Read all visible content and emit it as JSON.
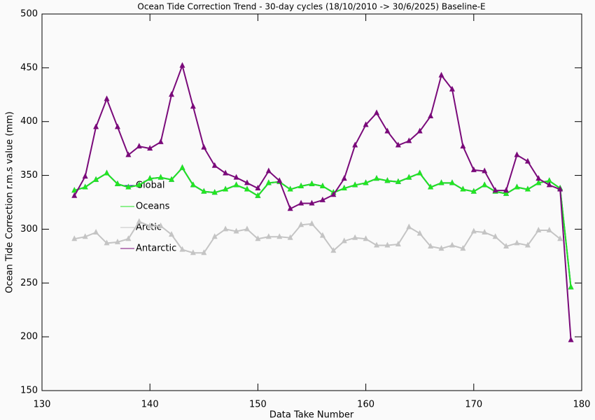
{
  "chart_data": {
    "type": "line",
    "title": "Ocean Tide Correction Trend - 30-day cycles (18/10/2010 -> 30/6/2025) Baseline-E",
    "x_label": "Data Take Number",
    "y_label": "Ocean Tide Correction r.m.s value (mm)",
    "x": [
      133,
      134,
      135,
      136,
      137,
      138,
      139,
      140,
      141,
      142,
      143,
      144,
      145,
      146,
      147,
      148,
      149,
      150,
      151,
      152,
      153,
      154,
      155,
      156,
      157,
      158,
      159,
      160,
      161,
      162,
      163,
      164,
      165,
      166,
      167,
      168,
      169,
      170,
      171,
      172,
      173,
      174,
      175,
      176,
      177,
      178,
      179
    ],
    "xlim": [
      130,
      180
    ],
    "xticks": [
      130,
      140,
      150,
      160,
      170,
      180
    ],
    "ylim": [
      150,
      500
    ],
    "yticks": [
      150,
      200,
      250,
      300,
      350,
      400,
      450,
      500
    ],
    "legend": "upper-left",
    "series": [
      {
        "name": "Global",
        "color": "#1a1a9a",
        "values": [
          336,
          339,
          346,
          352,
          342,
          339,
          341,
          347,
          348,
          346,
          357,
          341,
          335,
          334,
          337,
          341,
          337,
          331,
          343,
          344,
          337,
          340,
          342,
          340,
          334,
          338,
          341,
          343,
          347,
          345,
          344,
          348,
          352,
          339,
          343,
          343,
          337,
          335,
          341,
          335,
          333,
          339,
          337,
          343,
          345,
          338,
          246
        ]
      },
      {
        "name": "Oceans",
        "color": "#22e622",
        "values": [
          336,
          339,
          346,
          352,
          342,
          339,
          341,
          347,
          348,
          346,
          357,
          341,
          335,
          334,
          337,
          341,
          337,
          331,
          343,
          344,
          337,
          340,
          342,
          340,
          334,
          338,
          341,
          343,
          347,
          345,
          344,
          348,
          352,
          339,
          343,
          343,
          337,
          335,
          341,
          335,
          333,
          339,
          337,
          343,
          345,
          338,
          246
        ]
      },
      {
        "name": "Arctic",
        "color": "#c4c4c4",
        "values": [
          291,
          293,
          297,
          287,
          288,
          291,
          307,
          303,
          303,
          295,
          281,
          278,
          278,
          293,
          300,
          298,
          300,
          291,
          293,
          293,
          292,
          304,
          305,
          294,
          280,
          289,
          292,
          291,
          285,
          285,
          286,
          302,
          296,
          284,
          282,
          285,
          282,
          298,
          297,
          293,
          284,
          287,
          285,
          299,
          299,
          291,
          null
        ]
      },
      {
        "name": "Antarctic",
        "color": "#7a0a7a",
        "values": [
          331,
          349,
          395,
          421,
          395,
          369,
          377,
          375,
          381,
          425,
          452,
          414,
          376,
          359,
          352,
          348,
          343,
          338,
          354,
          345,
          319,
          324,
          324,
          327,
          332,
          347,
          378,
          397,
          408,
          391,
          378,
          382,
          391,
          405,
          443,
          430,
          377,
          355,
          354,
          336,
          336,
          369,
          363,
          347,
          341,
          337,
          197
        ]
      }
    ]
  }
}
